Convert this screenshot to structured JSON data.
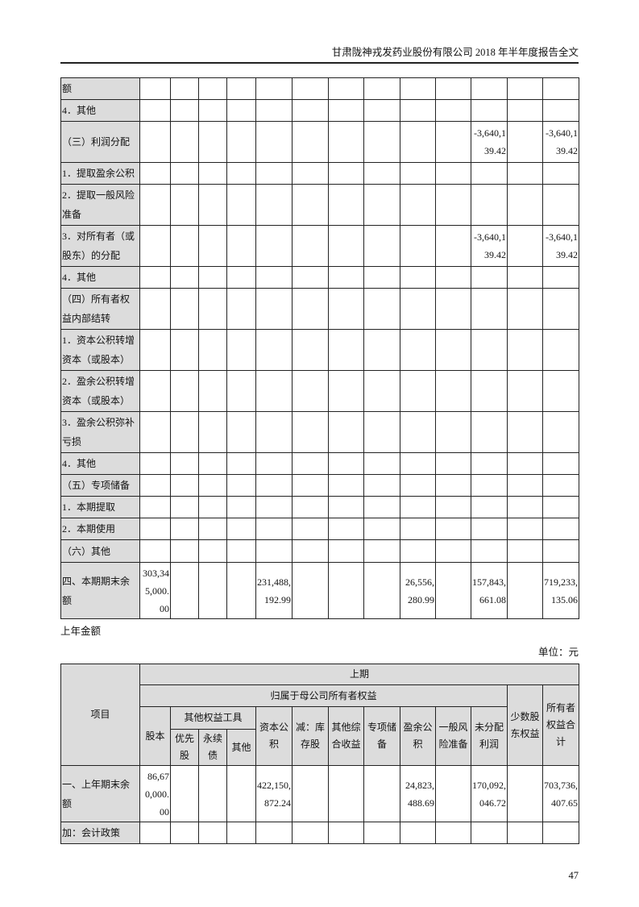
{
  "header": {
    "title": "甘肃陇神戎发药业股份有限公司 2018 年半年度报告全文"
  },
  "table1": {
    "rows": [
      {
        "label": "额",
        "values": [
          "",
          "",
          "",
          "",
          "",
          "",
          "",
          "",
          "",
          "",
          "",
          "",
          ""
        ]
      },
      {
        "label": "4．其他",
        "values": [
          "",
          "",
          "",
          "",
          "",
          "",
          "",
          "",
          "",
          "",
          "",
          "",
          ""
        ]
      },
      {
        "label": "（三）利润分配",
        "values": [
          "",
          "",
          "",
          "",
          "",
          "",
          "",
          "",
          "",
          "",
          "-3,640,139.42",
          "",
          "-3,640,139.42"
        ]
      },
      {
        "label": "1．提取盈余公积",
        "values": [
          "",
          "",
          "",
          "",
          "",
          "",
          "",
          "",
          "",
          "",
          "",
          "",
          ""
        ]
      },
      {
        "label": "2．提取一般风险准备",
        "values": [
          "",
          "",
          "",
          "",
          "",
          "",
          "",
          "",
          "",
          "",
          "",
          "",
          ""
        ]
      },
      {
        "label": "3．对所有者（或股东）的分配",
        "values": [
          "",
          "",
          "",
          "",
          "",
          "",
          "",
          "",
          "",
          "",
          "-3,640,139.42",
          "",
          "-3,640,139.42"
        ]
      },
      {
        "label": "4．其他",
        "values": [
          "",
          "",
          "",
          "",
          "",
          "",
          "",
          "",
          "",
          "",
          "",
          "",
          ""
        ]
      },
      {
        "label": "（四）所有者权益内部结转",
        "values": [
          "",
          "",
          "",
          "",
          "",
          "",
          "",
          "",
          "",
          "",
          "",
          "",
          ""
        ]
      },
      {
        "label": "1．资本公积转增资本（或股本）",
        "values": [
          "",
          "",
          "",
          "",
          "",
          "",
          "",
          "",
          "",
          "",
          "",
          "",
          ""
        ]
      },
      {
        "label": "2．盈余公积转增资本（或股本）",
        "values": [
          "",
          "",
          "",
          "",
          "",
          "",
          "",
          "",
          "",
          "",
          "",
          "",
          ""
        ]
      },
      {
        "label": "3．盈余公积弥补亏损",
        "values": [
          "",
          "",
          "",
          "",
          "",
          "",
          "",
          "",
          "",
          "",
          "",
          "",
          ""
        ]
      },
      {
        "label": "4．其他",
        "values": [
          "",
          "",
          "",
          "",
          "",
          "",
          "",
          "",
          "",
          "",
          "",
          "",
          ""
        ]
      },
      {
        "label": "（五）专项储备",
        "values": [
          "",
          "",
          "",
          "",
          "",
          "",
          "",
          "",
          "",
          "",
          "",
          "",
          ""
        ]
      },
      {
        "label": "1．本期提取",
        "values": [
          "",
          "",
          "",
          "",
          "",
          "",
          "",
          "",
          "",
          "",
          "",
          "",
          ""
        ]
      },
      {
        "label": "2．本期使用",
        "values": [
          "",
          "",
          "",
          "",
          "",
          "",
          "",
          "",
          "",
          "",
          "",
          "",
          ""
        ]
      },
      {
        "label": "（六）其他",
        "values": [
          "",
          "",
          "",
          "",
          "",
          "",
          "",
          "",
          "",
          "",
          "",
          "",
          ""
        ]
      },
      {
        "label": "四、本期期末余额",
        "values": [
          "303,345,000.00",
          "",
          "",
          "",
          "231,488,192.99",
          "",
          "",
          "",
          "26,556,280.99",
          "",
          "157,843,661.08",
          "",
          "719,233,135.06"
        ]
      }
    ]
  },
  "caption": "上年金额",
  "unit": "单位：元",
  "table2": {
    "item_header": "项目",
    "period": "上期",
    "parent_equity": "归属于母公司所有者权益",
    "other_equity_tools": "其他权益工具",
    "cols": {
      "share_capital": "股本",
      "preferred": "优先股",
      "perpetual": "永续债",
      "other": "其他",
      "capital_reserve": "资本公积",
      "treasury": "减：库存股",
      "oci": "其他综合收益",
      "special_reserve": "专项储备",
      "surplus_reserve": "盈余公积",
      "general_risk": "一般风险准备",
      "undistributed": "未分配利润",
      "minority": "少数股东权益",
      "total": "所有者权益合计"
    },
    "rows": [
      {
        "label": "一、上年期末余额",
        "values": [
          "86,670,000.00",
          "",
          "",
          "",
          "422,150,872.24",
          "",
          "",
          "",
          "24,823,488.69",
          "",
          "170,092,046.72",
          "",
          "703,736,407.65"
        ]
      },
      {
        "label": "加：会计政策",
        "values": [
          "",
          "",
          "",
          "",
          "",
          "",
          "",
          "",
          "",
          "",
          "",
          "",
          ""
        ]
      }
    ]
  },
  "page_number": "47"
}
